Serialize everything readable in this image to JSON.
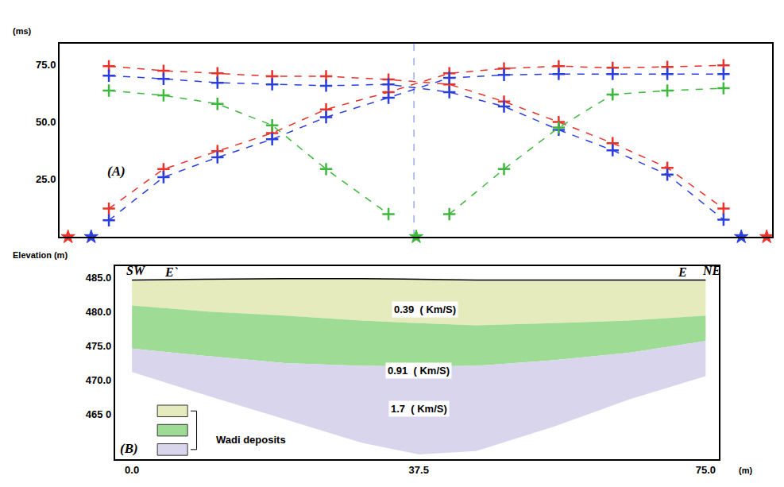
{
  "chart_data": [
    {
      "type": "line",
      "panel": "(A)",
      "y_label": "(ms)",
      "xlim": [
        -9,
        83.5
      ],
      "ylim": [
        0,
        84
      ],
      "yticks": [
        {
          "value": 25,
          "label": "25.0"
        },
        {
          "value": 50,
          "label": "50.0"
        },
        {
          "value": 75,
          "label": "75.0"
        }
      ],
      "tick_labels": "y",
      "grid": false,
      "marker": "cross",
      "line_style": "dashed",
      "vertical_line_x": 37.0,
      "series": [
        {
          "color": "#e8322a",
          "x": [
            -2.6,
            4.5,
            11.5,
            18.6,
            25.6,
            33.7,
            41.6,
            48.7,
            55.8,
            62.8,
            69.9,
            77.2
          ],
          "values": [
            12.3,
            29.5,
            37.3,
            45.2,
            55.5,
            63.0,
            71.2,
            73.3,
            74.3,
            73.6,
            74.0,
            74.7
          ]
        },
        {
          "color": "#e8322a",
          "x": [
            -2.6,
            4.5,
            11.5,
            18.6,
            25.6,
            33.7,
            41.6,
            48.7,
            55.8,
            62.8,
            69.9,
            77.2
          ],
          "values": [
            74.3,
            72.3,
            71.2,
            69.9,
            69.9,
            68.5,
            66.4,
            58.9,
            50.0,
            40.8,
            30.1,
            12.3
          ]
        },
        {
          "color": "#2a3ee0",
          "x": [
            -2.6,
            4.5,
            11.5,
            18.6,
            25.6,
            33.7,
            41.6,
            48.7,
            55.8,
            62.8,
            69.9,
            77.2
          ],
          "values": [
            7.2,
            26.0,
            34.6,
            42.5,
            52.1,
            60.6,
            69.2,
            70.5,
            70.9,
            70.9,
            70.9,
            70.9
          ]
        },
        {
          "color": "#2a3ee0",
          "x": [
            -2.6,
            4.5,
            11.5,
            18.6,
            25.6,
            33.7,
            41.6,
            48.7,
            55.8,
            62.8,
            69.9,
            77.2
          ],
          "values": [
            70.2,
            68.8,
            67.1,
            66.4,
            65.8,
            66.4,
            63.0,
            56.8,
            46.6,
            37.7,
            27.1,
            7.5
          ]
        },
        {
          "color": "#3cb83c",
          "x": [
            -2.6,
            4.5,
            11.5,
            18.6,
            25.6,
            33.7
          ],
          "values": [
            63.7,
            61.6,
            57.9,
            48.6,
            29.5,
            9.9
          ]
        },
        {
          "color": "#3cb83c",
          "x": [
            41.6,
            48.7,
            55.8,
            62.8,
            69.9,
            77.2
          ],
          "values": [
            9.9,
            29.5,
            47.6,
            62.0,
            63.7,
            64.7
          ]
        },
        {
          "type": "scatter",
          "marker": "star",
          "color": "#e8322a",
          "x": [
            -7.9,
            82.8
          ],
          "values": [
            0,
            0
          ]
        },
        {
          "type": "scatter",
          "marker": "star",
          "color": "#2a3ee0",
          "x": [
            -4.9,
            79.5
          ],
          "values": [
            0,
            0
          ]
        },
        {
          "type": "scatter",
          "marker": "star",
          "color": "#3cb83c",
          "x": [
            37.3
          ],
          "values": [
            0
          ]
        }
      ]
    },
    {
      "type": "area",
      "panel": "(B)",
      "y_label": "Elevation (m)",
      "x_label": "(m)",
      "xlim": [
        -2.2,
        76.7
      ],
      "ylim": [
        458.5,
        486.6
      ],
      "xticks": [
        {
          "value": 0,
          "label": "0.0"
        },
        {
          "value": 37.5,
          "label": "37.5"
        },
        {
          "value": 75,
          "label": "75.0"
        }
      ],
      "yticks": [
        {
          "value": 465,
          "label": "465 0"
        },
        {
          "value": 470,
          "label": "470.0"
        },
        {
          "value": 475,
          "label": "475.0"
        },
        {
          "value": 480,
          "label": "480.0"
        },
        {
          "value": 485,
          "label": "485.0"
        }
      ],
      "grid": false,
      "legend": "bottom left",
      "legend_label": "Wadi deposits",
      "x": [
        0,
        10,
        20,
        30,
        37.5,
        45,
        55,
        65,
        75
      ],
      "surface": [
        484.6,
        484.7,
        484.8,
        484.8,
        484.7,
        484.6,
        484.6,
        484.6,
        484.6
      ],
      "layers": [
        {
          "color": "#e6ebbd",
          "label": "0.39  ( Km/S)",
          "label_x": 38.3,
          "label_y": 480.3,
          "bottom": [
            480.9,
            480.0,
            479.4,
            478.7,
            478.3,
            478.0,
            478.3,
            478.7,
            479.4
          ]
        },
        {
          "color": "#9edb95",
          "label": "0.91  ( Km/S)",
          "label_x": 37.5,
          "label_y": 471.4,
          "bottom": [
            474.6,
            473.5,
            472.5,
            472.1,
            472.0,
            472.1,
            472.9,
            474.0,
            475.7
          ]
        },
        {
          "color": "#d9d5ec",
          "label": "1.7  ( Km/S)",
          "label_x": 37.5,
          "label_y": 465.8,
          "bottom": [
            471.2,
            467.7,
            464.3,
            460.9,
            459.2,
            459.7,
            463.2,
            467.2,
            470.6
          ]
        }
      ],
      "annotations": [
        {
          "text": "SW",
          "x": 0.6,
          "y": 486.0
        },
        {
          "text": "E`",
          "x": 5.1,
          "y": 485.7
        },
        {
          "text": "E",
          "x": 71.9,
          "y": 485.7
        },
        {
          "text": "NE",
          "x": 75.7,
          "y": 486.0
        }
      ]
    }
  ]
}
